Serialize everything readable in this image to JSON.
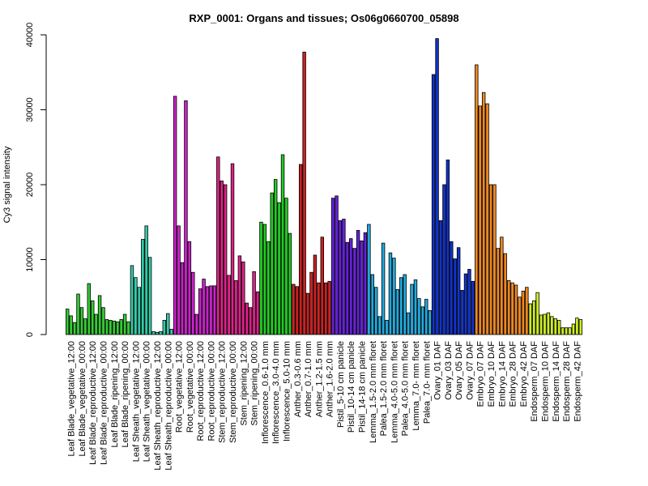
{
  "chart_data": {
    "type": "bar",
    "title": "RXP_0001: Organs and tissues; Os06g0660700_05898",
    "xlabel": "",
    "ylabel": "Cy3 signal intensity",
    "ylim": [
      0,
      40000
    ],
    "yticks": [
      0,
      10000,
      20000,
      30000,
      40000
    ],
    "grid": false,
    "legend": "none",
    "tick_labels": [
      "Leaf Blade_vegetative_12:00",
      "Leaf Blade_vegetative_00:00",
      "Leaf Blade_reproductive_12:00",
      "Leaf Blade_reproductive_00:00",
      "Leaf Blade_ripening_12:00",
      "Leaf Blade_ripening_00:00",
      "Leaf Sheath_vegetative_12:00",
      "Leaf Sheath_vegetative_00:00",
      "Leaf Sheath_reproductive_12:00",
      "Leaf Sheath_reproductive_00:00",
      "Root_vegetative_12:00",
      "Root_vegetative_00:00",
      "Root_reproductive_12:00",
      "Root_reproductive_00:00",
      "Stem_reproductive_12:00",
      "Stem_reproductive_00:00",
      "Stem_ripening_12:00",
      "Stem_ripening_00:00",
      "Inflorescence_0.6-1.0 mm",
      "Inflorescence_3.0-4.0 mm",
      "Inflorescence_5.0-10 mm",
      "Anther_0.3-0.6 mm",
      "Anther_0.7-1.0 mm",
      "Anther_1.2-1.5 mm",
      "Anther_1.6-2.0 mm",
      "Pistil_5-10 cm panicle",
      "Pistil_10-14 cm panicle",
      "Pistil_14-18 cm panicle",
      "Lemma_1.5-2.0 mm floret",
      "Palea_1.5-2.0 mm floret",
      "Lemma_4.0-5.0 mm floret",
      "Palea_4.0-5.0 mm floret",
      "Lemma_7.0- mm floret",
      "Palea_7.0- mm floret",
      "Ovary_01 DAF",
      "Ovary_03 DAF",
      "Ovary_05 DAF",
      "Ovary_07 DAF",
      "Embryo_07 DAF",
      "Embryo_10 DAF",
      "Embryo_14 DAF",
      "Embryo_28 DAF",
      "Embryo_42 DAF",
      "Endosperm_07 DAF",
      "Endosperm_10 DAF",
      "Endosperm_14 DAF",
      "Endosperm_28 DAF",
      "Endosperm_42 DAF"
    ],
    "groups": [
      {
        "color": "#33cc33",
        "values": [
          3400,
          2500,
          1600,
          5400,
          3600,
          2100,
          6800,
          4500,
          2700,
          5200,
          3600,
          2000,
          1900,
          1800,
          1700,
          2000,
          2700,
          1700
        ]
      },
      {
        "color": "#33ccaa",
        "values": [
          9200,
          7600,
          6300,
          12700,
          14500,
          10300,
          400,
          300,
          400,
          1900,
          2800,
          700
        ]
      },
      {
        "color": "#cc22cc",
        "values": [
          31800,
          14500,
          9600,
          31200,
          12400,
          8300,
          2700,
          6100,
          7400,
          6400,
          6500,
          6500
        ]
      },
      {
        "color": "#dd2288",
        "values": [
          23700,
          20500,
          20000,
          7900,
          22800,
          7200,
          10500,
          9700,
          4200,
          3600,
          8400,
          5700
        ]
      },
      {
        "color": "#22cc22",
        "values": [
          15000,
          14700,
          12400,
          18900,
          20700,
          17600,
          24000,
          18200,
          13500
        ]
      },
      {
        "color": "#cc2222",
        "values": [
          6700,
          6400,
          22700,
          37700,
          5500,
          8300,
          10600,
          6900,
          13000,
          6900,
          7100
        ]
      },
      {
        "color": "#6622dd",
        "values": [
          18200,
          18500,
          15200,
          15400,
          12300,
          12800,
          11500,
          13900,
          12500,
          13600
        ]
      },
      {
        "color": "#22aadd",
        "values": [
          14700,
          8000,
          6300,
          2400,
          12200,
          1900,
          10900,
          10200,
          6000,
          7600,
          8000,
          2900,
          6700,
          7300,
          4800,
          3700,
          4700,
          3200
        ]
      },
      {
        "color": "#1133cc",
        "values": [
          34700,
          39500,
          15200,
          20000,
          23300,
          12400,
          10100,
          11600,
          5900,
          8100,
          8700,
          7100
        ]
      },
      {
        "color": "#ee8822",
        "values": [
          36000,
          30500,
          32300,
          30800,
          20000,
          20000,
          11500,
          13000,
          10800,
          7200,
          6900,
          6600,
          5000,
          5800,
          6300
        ]
      },
      {
        "color": "#ccee22",
        "values": [
          4100,
          4500,
          5600,
          2600,
          2700,
          2900,
          2400,
          2100,
          1900,
          900,
          900,
          900,
          1400,
          2200,
          2000
        ]
      }
    ]
  }
}
